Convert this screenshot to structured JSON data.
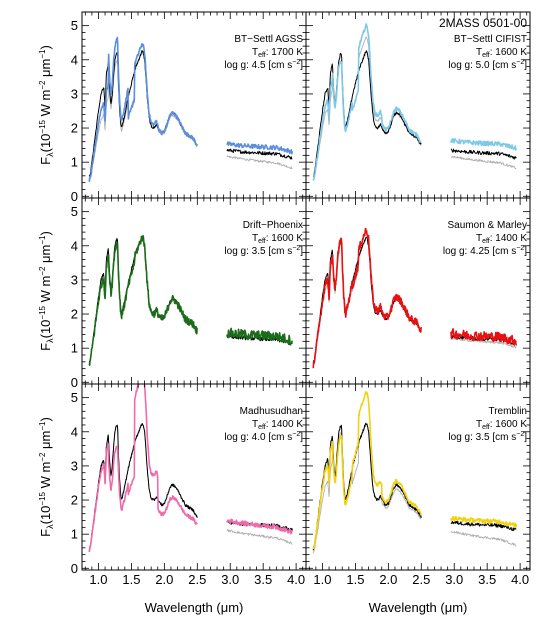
{
  "chart_data": {
    "type": "line",
    "object_name": "2MASS 0501-00",
    "xlabel": "Wavelength (μm)",
    "ylabel_main": "F",
    "ylabel_sub": "λ",
    "ylabel_unit": "(10",
    "ylabel_exp1": "−15",
    "ylabel_unit2": " W m",
    "ylabel_exp2": "−2",
    "ylabel_unit3": " μm",
    "ylabel_exp3": "−1",
    "ylabel_close": ")",
    "xlim": [
      0.75,
      4.15
    ],
    "ylim": [
      -0.05,
      5.4
    ],
    "xticks": [
      1.0,
      1.5,
      2.0,
      2.5,
      3.0,
      3.5,
      4.0
    ],
    "xtick_labels": [
      "1.0",
      "1.5",
      "2.0",
      "2.5",
      "3.0",
      "3.5",
      "4.0"
    ],
    "yticks": [
      0,
      1,
      2,
      3,
      4,
      5
    ],
    "ytick_labels": [
      "0",
      "1",
      "2",
      "3",
      "4",
      "5"
    ],
    "teff_prefix": "T",
    "teff_sub": "eff",
    "logg_prefix": "log g: ",
    "logg_unit_open": " [cm s",
    "logg_unit_exp": "−2",
    "logg_unit_close": "]",
    "data_color": "#000000",
    "alt_fit_color": "#b0b0b0",
    "panels": [
      {
        "model": "BT−Settl AGSS",
        "teff": "1700 K",
        "logg": "4.5",
        "color": "#5b8fde",
        "nir": {
          "factor": [
            0.85,
            1.1,
            0.78,
            1.05,
            1.0
          ],
          "shift": [
            0.0,
            0.0,
            0.0,
            0.0,
            0.0
          ]
        },
        "mir": {
          "offset": 0.18,
          "slope": 0.0
        },
        "alt_visible": true,
        "alt": {
          "factor": [
            0.75,
            0.95,
            0.8,
            1.0,
            0.97
          ],
          "mir_offset": -0.3
        }
      },
      {
        "model": "BT−Settl CIFIST",
        "teff": "1600 K",
        "logg": "5.0",
        "color": "#7fc8e8",
        "nir": {
          "factor": [
            0.88,
            0.95,
            0.85,
            1.18,
            1.05
          ],
          "shift": [
            0.0,
            0.0,
            0.0,
            0.0,
            0.0
          ]
        },
        "mir": {
          "offset": 0.28,
          "slope": 0.0
        },
        "alt_visible": true,
        "alt": {
          "factor": [
            0.8,
            0.95,
            0.85,
            1.1,
            1.0
          ],
          "mir_offset": -0.3
        }
      },
      {
        "model": "Drift−Phoenix",
        "teff": "1600 K",
        "logg": "3.5",
        "color": "#1a6b1a",
        "nir": {
          "factor": [
            0.95,
            0.97,
            0.96,
            1.0,
            1.0
          ],
          "shift": [
            0.0,
            0.0,
            0.0,
            0.0,
            0.0
          ]
        },
        "mir": {
          "offset": 0.1,
          "slope": 0.0
        },
        "alt_visible": false,
        "alt": {
          "factor": [
            1,
            1,
            1,
            1,
            1
          ],
          "mir_offset": 0
        }
      },
      {
        "model": "Saumon & Marley",
        "teff": "1400 K",
        "logg": "4.25",
        "color": "#e81010",
        "nir": {
          "factor": [
            0.95,
            1.0,
            0.95,
            1.05,
            1.02
          ],
          "shift": [
            0.0,
            0.0,
            0.0,
            0.0,
            0.0
          ]
        },
        "mir": {
          "offset": 0.08,
          "slope": 0.0
        },
        "alt_visible": true,
        "alt": {
          "factor": [
            0.9,
            0.97,
            0.9,
            1.0,
            1.0
          ],
          "mir_offset": -0.1
        }
      },
      {
        "model": "Madhusudhan",
        "teff": "1400 K",
        "logg": "4.0",
        "color": "#f06aaa",
        "nir": {
          "factor": [
            0.95,
            0.85,
            0.75,
            1.35,
            0.85
          ],
          "shift": [
            0.0,
            0.0,
            0.0,
            0.0,
            0.0
          ]
        },
        "mir": {
          "offset": 0.05,
          "slope": -0.12
        },
        "alt_visible": true,
        "alt": {
          "factor": [
            1,
            1,
            1,
            1,
            1
          ],
          "mir_offset": -0.4
        }
      },
      {
        "model": "Tremblin",
        "teff": "1600 K",
        "logg": "3.5",
        "color": "#f2d10f",
        "nir": {
          "factor": [
            0.95,
            0.92,
            1.02,
            1.22,
            1.05
          ],
          "shift": [
            0.0,
            0.0,
            0.0,
            0.0,
            0.0
          ]
        },
        "mir": {
          "offset": 0.12,
          "slope": 0.0
        },
        "alt_visible": true,
        "alt": {
          "factor": [
            0.8,
            0.95,
            0.85,
            1.0,
            0.95
          ],
          "mir_offset": -0.45
        }
      }
    ],
    "observed_nir": {
      "x": [
        0.86,
        0.88,
        0.92,
        0.96,
        1.0,
        1.04,
        1.08,
        1.1,
        1.12,
        1.15,
        1.17,
        1.19,
        1.21,
        1.23,
        1.25,
        1.27,
        1.29,
        1.3,
        1.32,
        1.34,
        1.35,
        1.37,
        1.4,
        1.43,
        1.46,
        1.5,
        1.54,
        1.57,
        1.6,
        1.63,
        1.66,
        1.68,
        1.7,
        1.72,
        1.74,
        1.77,
        1.8,
        1.84,
        1.88,
        1.92,
        1.96,
        2.0,
        2.04,
        2.08,
        2.12,
        2.16,
        2.2,
        2.24,
        2.28,
        2.32,
        2.36,
        2.4,
        2.44,
        2.48,
        2.5
      ],
      "y": [
        0.55,
        0.7,
        1.3,
        1.9,
        2.5,
        3.0,
        3.2,
        2.6,
        3.6,
        3.9,
        3.1,
        2.7,
        3.0,
        3.6,
        4.0,
        4.15,
        4.2,
        3.5,
        2.6,
        2.1,
        2.0,
        2.15,
        2.4,
        2.7,
        3.0,
        3.3,
        3.6,
        3.8,
        3.95,
        4.1,
        4.25,
        4.2,
        4.0,
        3.5,
        2.9,
        2.3,
        2.05,
        2.0,
        2.1,
        1.95,
        1.85,
        1.9,
        2.1,
        2.35,
        2.45,
        2.4,
        2.3,
        2.15,
        2.0,
        1.85,
        1.8,
        1.75,
        1.7,
        1.55,
        1.5
      ]
    },
    "observed_mir": {
      "x": [
        2.95,
        3.2,
        3.45,
        3.7,
        3.95
      ],
      "y": [
        1.35,
        1.3,
        1.27,
        1.25,
        1.12
      ]
    }
  }
}
